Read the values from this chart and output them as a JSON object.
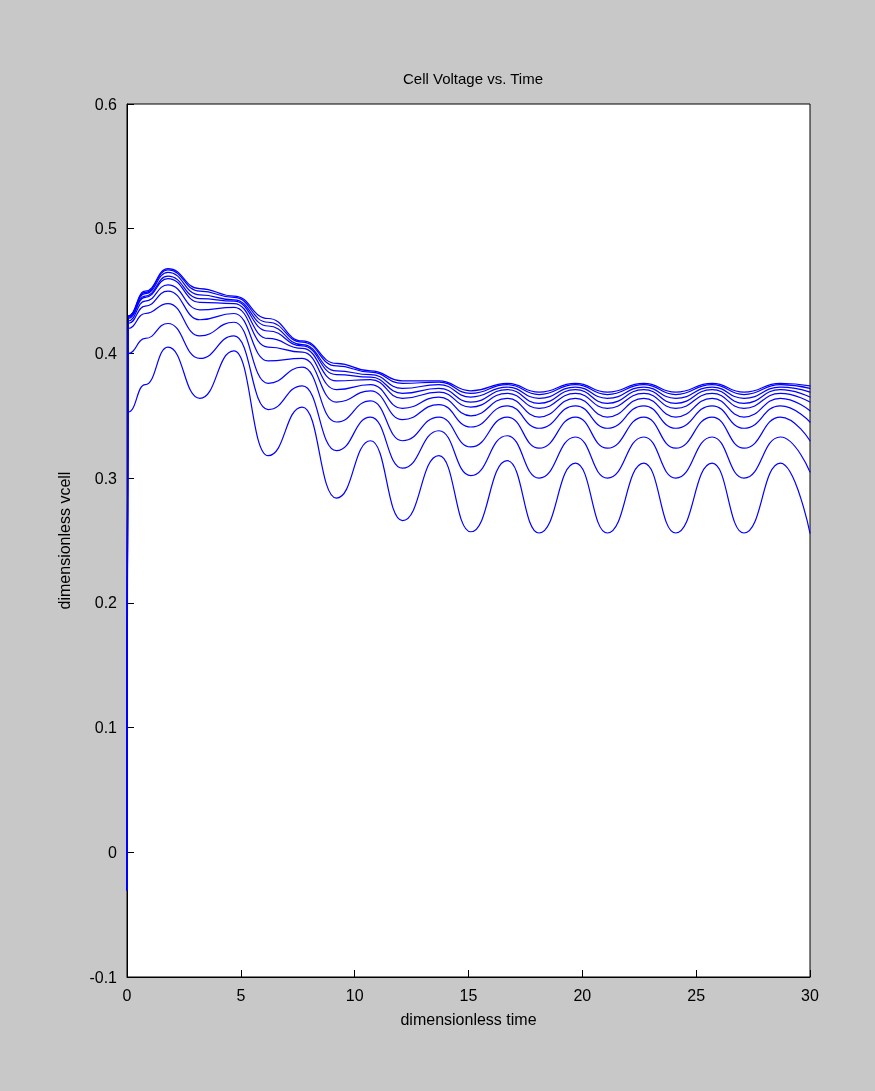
{
  "chart_data": {
    "type": "line",
    "title": "Cell Voltage vs. Time",
    "xlabel": "dimensionless time",
    "ylabel": "dimensionless vcell",
    "x": [
      0,
      0.05,
      0.8,
      1.8,
      3.2,
      4.7,
      6.2,
      7.7,
      9.2,
      10.7,
      12.1,
      13.7,
      15.1,
      16.7,
      18.1,
      19.7,
      21.1,
      22.7,
      24.1,
      25.7,
      27.1,
      28.7,
      30
    ],
    "series": [
      {
        "color": "#0000ff",
        "values": [
          -0.03,
          0.353,
          0.375,
          0.405,
          0.364,
          0.402,
          0.318,
          0.357,
          0.284,
          0.33,
          0.266,
          0.318,
          0.257,
          0.314,
          0.256,
          0.312,
          0.256,
          0.312,
          0.256,
          0.312,
          0.256,
          0.312,
          0.256
        ]
      },
      {
        "color": "#0000ff",
        "values": [
          -0.03,
          0.4,
          0.412,
          0.424,
          0.396,
          0.414,
          0.355,
          0.374,
          0.322,
          0.349,
          0.308,
          0.338,
          0.302,
          0.334,
          0.3,
          0.333,
          0.3,
          0.333,
          0.3,
          0.333,
          0.3,
          0.333,
          0.305
        ]
      },
      {
        "color": "#0000ff",
        "values": [
          -0.03,
          0.42,
          0.432,
          0.44,
          0.414,
          0.425,
          0.376,
          0.389,
          0.345,
          0.362,
          0.33,
          0.349,
          0.325,
          0.349,
          0.324,
          0.349,
          0.324,
          0.349,
          0.324,
          0.349,
          0.324,
          0.349,
          0.33
        ]
      },
      {
        "color": "#0000ff",
        "values": [
          -0.03,
          0.424,
          0.438,
          0.45,
          0.427,
          0.432,
          0.394,
          0.396,
          0.361,
          0.37,
          0.347,
          0.359,
          0.341,
          0.358,
          0.34,
          0.358,
          0.34,
          0.358,
          0.34,
          0.358,
          0.34,
          0.358,
          0.345
        ]
      },
      {
        "color": "#0000ff",
        "values": [
          -0.03,
          0.426,
          0.442,
          0.455,
          0.435,
          0.437,
          0.405,
          0.401,
          0.371,
          0.375,
          0.356,
          0.365,
          0.35,
          0.364,
          0.349,
          0.364,
          0.349,
          0.364,
          0.349,
          0.364,
          0.349,
          0.364,
          0.354
        ]
      },
      {
        "color": "#0000ff",
        "values": [
          -0.03,
          0.428,
          0.445,
          0.46,
          0.441,
          0.44,
          0.412,
          0.404,
          0.378,
          0.379,
          0.364,
          0.369,
          0.357,
          0.368,
          0.356,
          0.368,
          0.356,
          0.368,
          0.356,
          0.368,
          0.356,
          0.368,
          0.361
        ]
      },
      {
        "color": "#0000ff",
        "values": [
          -0.03,
          0.429,
          0.446,
          0.462,
          0.444,
          0.442,
          0.418,
          0.406,
          0.383,
          0.381,
          0.368,
          0.372,
          0.361,
          0.371,
          0.36,
          0.371,
          0.36,
          0.371,
          0.36,
          0.371,
          0.36,
          0.371,
          0.365
        ]
      },
      {
        "color": "#0000ff",
        "values": [
          -0.03,
          0.43,
          0.448,
          0.465,
          0.447,
          0.443,
          0.422,
          0.407,
          0.386,
          0.383,
          0.372,
          0.375,
          0.365,
          0.373,
          0.364,
          0.373,
          0.364,
          0.373,
          0.364,
          0.373,
          0.364,
          0.373,
          0.369
        ]
      },
      {
        "color": "#0000ff",
        "values": [
          -0.03,
          0.43,
          0.449,
          0.467,
          0.45,
          0.445,
          0.425,
          0.409,
          0.39,
          0.385,
          0.376,
          0.377,
          0.368,
          0.375,
          0.367,
          0.375,
          0.367,
          0.375,
          0.367,
          0.375,
          0.367,
          0.375,
          0.372
        ]
      },
      {
        "color": "#0000ff",
        "values": [
          -0.03,
          0.43,
          0.45,
          0.468,
          0.452,
          0.446,
          0.428,
          0.41,
          0.392,
          0.386,
          0.378,
          0.378,
          0.37,
          0.376,
          0.369,
          0.376,
          0.369,
          0.376,
          0.369,
          0.376,
          0.369,
          0.376,
          0.374
        ]
      }
    ],
    "xlim": [
      0,
      30
    ],
    "xticks": [
      0,
      5,
      10,
      15,
      20,
      25,
      30
    ],
    "ylim": [
      -0.1,
      0.6
    ],
    "yticks": [
      -0.1,
      0,
      0.1,
      0.2,
      0.3,
      0.4,
      0.5,
      0.6
    ],
    "marker": "none",
    "line_style": "solid"
  }
}
